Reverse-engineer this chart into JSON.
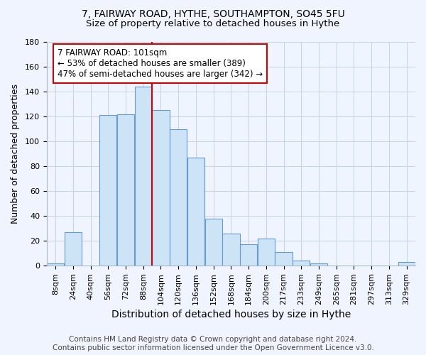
{
  "title1": "7, FAIRWAY ROAD, HYTHE, SOUTHAMPTON, SO45 5FU",
  "title2": "Size of property relative to detached houses in Hythe",
  "xlabel": "Distribution of detached houses by size in Hythe",
  "ylabel": "Number of detached properties",
  "categories": [
    "8sqm",
    "24sqm",
    "40sqm",
    "56sqm",
    "72sqm",
    "88sqm",
    "104sqm",
    "120sqm",
    "136sqm",
    "152sqm",
    "168sqm",
    "184sqm",
    "200sqm",
    "217sqm",
    "233sqm",
    "249sqm",
    "265sqm",
    "281sqm",
    "297sqm",
    "313sqm",
    "329sqm"
  ],
  "values": [
    2,
    27,
    0,
    121,
    122,
    144,
    125,
    110,
    87,
    38,
    26,
    17,
    22,
    11,
    4,
    2,
    0,
    0,
    0,
    0,
    3
  ],
  "bar_color": "#cce4f5",
  "bar_edge_color": "#6699cc",
  "vline_color": "#cc0000",
  "annotation_text": "7 FAIRWAY ROAD: 101sqm\n← 53% of detached houses are smaller (389)\n47% of semi-detached houses are larger (342) →",
  "annotation_box_color": "#ffffff",
  "annotation_box_edge": "#cc0000",
  "ylim": [
    0,
    180
  ],
  "yticks": [
    0,
    20,
    40,
    60,
    80,
    100,
    120,
    140,
    160,
    180
  ],
  "footer": "Contains HM Land Registry data © Crown copyright and database right 2024.\nContains public sector information licensed under the Open Government Licence v3.0.",
  "title1_fontsize": 10,
  "title2_fontsize": 9.5,
  "xlabel_fontsize": 10,
  "ylabel_fontsize": 9,
  "tick_fontsize": 8,
  "footer_fontsize": 7.5,
  "bg_color": "#f0f4ff"
}
